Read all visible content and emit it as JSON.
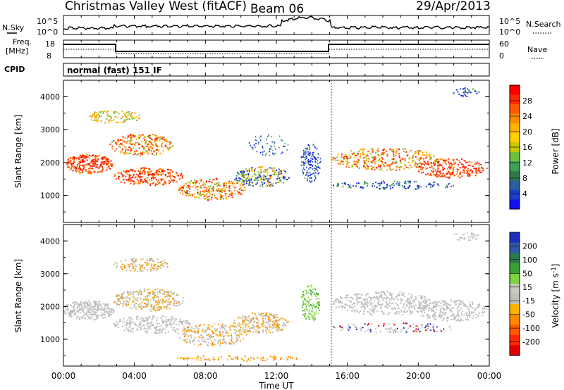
{
  "header": {
    "title": "Christmas Valley West (fitACF)",
    "beam": "Beam 06",
    "date": "29/Apr/2013"
  },
  "top_panels": {
    "nsky_label": "N.Sky",
    "nsearch_label": "N.Search",
    "noise_ticks_left": [
      "10^5",
      "10^0"
    ],
    "noise_ticks_right": [
      "10^5",
      "10^0"
    ],
    "freq_label_1": "Freq.",
    "freq_label_2": "[MHz]",
    "freq_ticks": [
      "18",
      "8"
    ],
    "nave_label": "Nave",
    "nave_ticks": [
      "60",
      "0"
    ],
    "cpid_label": "CPID",
    "cpid_text": "normal (fast) 151 IF"
  },
  "chart_data": [
    {
      "type": "heatmap",
      "name": "power",
      "ylabel": "Slant Range [km]",
      "xlabel": "Time UT",
      "x_ticks": [
        "00:00",
        "04:00",
        "08:00",
        "12:00",
        "16:00",
        "20:00",
        "00:00"
      ],
      "y_ticks": [
        "1000",
        "2000",
        "3000",
        "4000"
      ],
      "ylim": [
        180,
        4500
      ],
      "xlim_hours": [
        0,
        24
      ],
      "colorbar_label": "Power [dB]",
      "colorbar_ticks": [
        "28",
        "24",
        "20",
        "16",
        "12",
        "8",
        "4"
      ],
      "colorbar_colors": [
        "#ff0000",
        "#ff2a00",
        "#ff5a00",
        "#ff8c00",
        "#ffb300",
        "#ffd200",
        "#c8c800",
        "#6fbf3a",
        "#3fa05a",
        "#2e7a4a",
        "#2a5fa0",
        "#1e3cc8",
        "#1010f0"
      ]
    },
    {
      "type": "heatmap",
      "name": "velocity",
      "ylabel": "Slant Range [km]",
      "xlabel": "Time UT",
      "x_ticks": [
        "00:00",
        "04:00",
        "08:00",
        "12:00",
        "16:00",
        "20:00",
        "00:00"
      ],
      "y_ticks": [
        "1000",
        "2000",
        "3000",
        "4000"
      ],
      "ylim": [
        180,
        4500
      ],
      "xlim_hours": [
        0,
        24
      ],
      "colorbar_label": "Velocity [m s^-1]",
      "colorbar_ticks": [
        "200",
        "100",
        "50",
        "15",
        "-15",
        "-50",
        "-100",
        "-200"
      ],
      "colorbar_colors": [
        "#1c2fbf",
        "#2f57a8",
        "#2d7a4e",
        "#39a035",
        "#7fd23a",
        "#c8c8c0",
        "#c0c0b8",
        "#ffb300",
        "#ff8a00",
        "#ff5a00",
        "#ff2a00",
        "#e00000"
      ]
    }
  ],
  "time_axis_label": "Time UT",
  "colors": {
    "ground_scatter": "#bebebe",
    "background": "#ffffff"
  }
}
